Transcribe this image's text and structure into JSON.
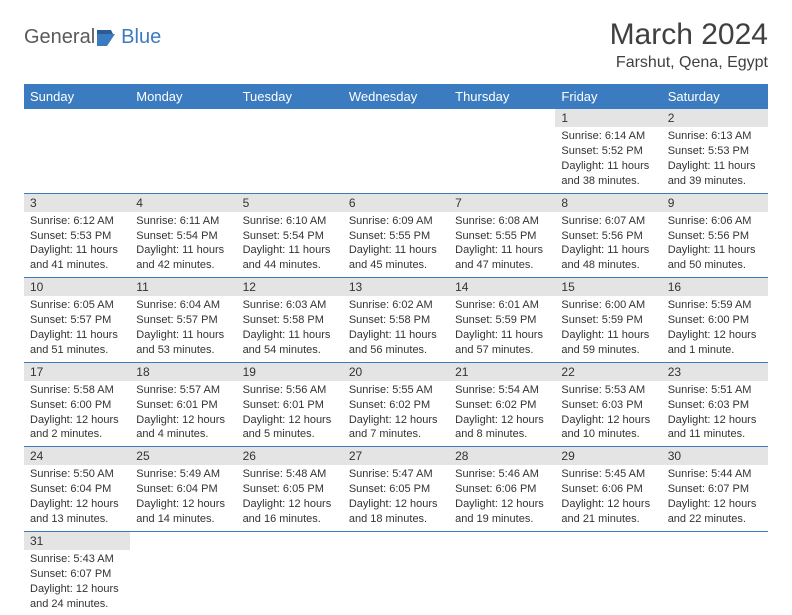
{
  "logo": {
    "text1": "General",
    "text2": "Blue"
  },
  "title": "March 2024",
  "location": "Farshut, Qena, Egypt",
  "colors": {
    "header_bg": "#3b7bbf",
    "header_text": "#ffffff",
    "daynum_bg": "#e4e4e4",
    "border": "#3b7bbf",
    "text": "#333333",
    "logo_gray": "#5a5a5a",
    "logo_blue": "#3b7bbf"
  },
  "day_headers": [
    "Sunday",
    "Monday",
    "Tuesday",
    "Wednesday",
    "Thursday",
    "Friday",
    "Saturday"
  ],
  "weeks": [
    [
      null,
      null,
      null,
      null,
      null,
      {
        "n": "1",
        "sr": "6:14 AM",
        "ss": "5:52 PM",
        "dl": "11 hours and 38 minutes."
      },
      {
        "n": "2",
        "sr": "6:13 AM",
        "ss": "5:53 PM",
        "dl": "11 hours and 39 minutes."
      }
    ],
    [
      {
        "n": "3",
        "sr": "6:12 AM",
        "ss": "5:53 PM",
        "dl": "11 hours and 41 minutes."
      },
      {
        "n": "4",
        "sr": "6:11 AM",
        "ss": "5:54 PM",
        "dl": "11 hours and 42 minutes."
      },
      {
        "n": "5",
        "sr": "6:10 AM",
        "ss": "5:54 PM",
        "dl": "11 hours and 44 minutes."
      },
      {
        "n": "6",
        "sr": "6:09 AM",
        "ss": "5:55 PM",
        "dl": "11 hours and 45 minutes."
      },
      {
        "n": "7",
        "sr": "6:08 AM",
        "ss": "5:55 PM",
        "dl": "11 hours and 47 minutes."
      },
      {
        "n": "8",
        "sr": "6:07 AM",
        "ss": "5:56 PM",
        "dl": "11 hours and 48 minutes."
      },
      {
        "n": "9",
        "sr": "6:06 AM",
        "ss": "5:56 PM",
        "dl": "11 hours and 50 minutes."
      }
    ],
    [
      {
        "n": "10",
        "sr": "6:05 AM",
        "ss": "5:57 PM",
        "dl": "11 hours and 51 minutes."
      },
      {
        "n": "11",
        "sr": "6:04 AM",
        "ss": "5:57 PM",
        "dl": "11 hours and 53 minutes."
      },
      {
        "n": "12",
        "sr": "6:03 AM",
        "ss": "5:58 PM",
        "dl": "11 hours and 54 minutes."
      },
      {
        "n": "13",
        "sr": "6:02 AM",
        "ss": "5:58 PM",
        "dl": "11 hours and 56 minutes."
      },
      {
        "n": "14",
        "sr": "6:01 AM",
        "ss": "5:59 PM",
        "dl": "11 hours and 57 minutes."
      },
      {
        "n": "15",
        "sr": "6:00 AM",
        "ss": "5:59 PM",
        "dl": "11 hours and 59 minutes."
      },
      {
        "n": "16",
        "sr": "5:59 AM",
        "ss": "6:00 PM",
        "dl": "12 hours and 1 minute."
      }
    ],
    [
      {
        "n": "17",
        "sr": "5:58 AM",
        "ss": "6:00 PM",
        "dl": "12 hours and 2 minutes."
      },
      {
        "n": "18",
        "sr": "5:57 AM",
        "ss": "6:01 PM",
        "dl": "12 hours and 4 minutes."
      },
      {
        "n": "19",
        "sr": "5:56 AM",
        "ss": "6:01 PM",
        "dl": "12 hours and 5 minutes."
      },
      {
        "n": "20",
        "sr": "5:55 AM",
        "ss": "6:02 PM",
        "dl": "12 hours and 7 minutes."
      },
      {
        "n": "21",
        "sr": "5:54 AM",
        "ss": "6:02 PM",
        "dl": "12 hours and 8 minutes."
      },
      {
        "n": "22",
        "sr": "5:53 AM",
        "ss": "6:03 PM",
        "dl": "12 hours and 10 minutes."
      },
      {
        "n": "23",
        "sr": "5:51 AM",
        "ss": "6:03 PM",
        "dl": "12 hours and 11 minutes."
      }
    ],
    [
      {
        "n": "24",
        "sr": "5:50 AM",
        "ss": "6:04 PM",
        "dl": "12 hours and 13 minutes."
      },
      {
        "n": "25",
        "sr": "5:49 AM",
        "ss": "6:04 PM",
        "dl": "12 hours and 14 minutes."
      },
      {
        "n": "26",
        "sr": "5:48 AM",
        "ss": "6:05 PM",
        "dl": "12 hours and 16 minutes."
      },
      {
        "n": "27",
        "sr": "5:47 AM",
        "ss": "6:05 PM",
        "dl": "12 hours and 18 minutes."
      },
      {
        "n": "28",
        "sr": "5:46 AM",
        "ss": "6:06 PM",
        "dl": "12 hours and 19 minutes."
      },
      {
        "n": "29",
        "sr": "5:45 AM",
        "ss": "6:06 PM",
        "dl": "12 hours and 21 minutes."
      },
      {
        "n": "30",
        "sr": "5:44 AM",
        "ss": "6:07 PM",
        "dl": "12 hours and 22 minutes."
      }
    ],
    [
      {
        "n": "31",
        "sr": "5:43 AM",
        "ss": "6:07 PM",
        "dl": "12 hours and 24 minutes."
      },
      null,
      null,
      null,
      null,
      null,
      null
    ]
  ],
  "labels": {
    "sunrise": "Sunrise:",
    "sunset": "Sunset:",
    "daylight": "Daylight:"
  }
}
